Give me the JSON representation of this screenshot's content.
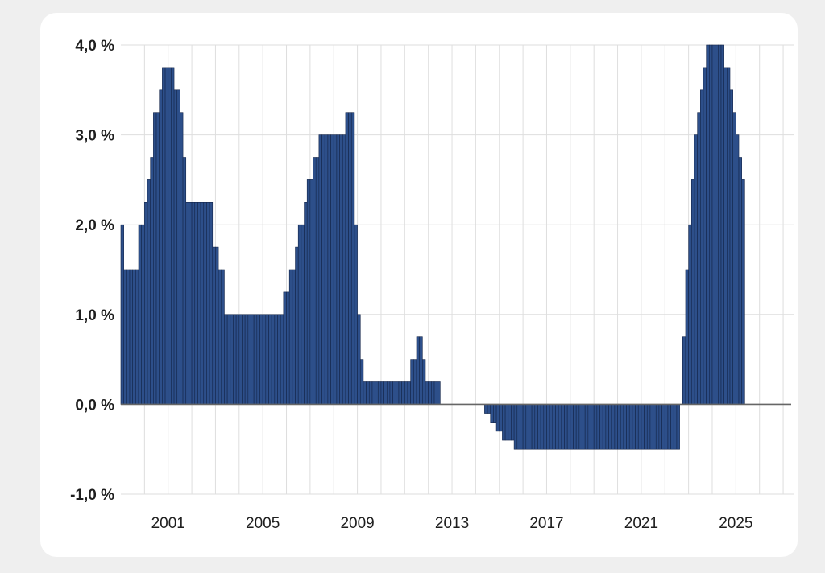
{
  "chart_data": {
    "type": "bar",
    "title": "",
    "xlabel": "",
    "ylabel": "",
    "ylim": [
      -1.0,
      4.0
    ],
    "xlim": [
      1999.0,
      2027.1
    ],
    "grid": true,
    "legend": "none",
    "y_ticks": [
      {
        "value": 4.0,
        "label": "4,0 %"
      },
      {
        "value": 3.0,
        "label": "3,0 %"
      },
      {
        "value": 2.0,
        "label": "2,0 %"
      },
      {
        "value": 1.0,
        "label": "1,0 %"
      },
      {
        "value": 0.0,
        "label": "0,0 %"
      },
      {
        "value": -1.0,
        "label": "-1,0 %"
      }
    ],
    "x_ticks": [
      {
        "value": 2001,
        "label": "2001"
      },
      {
        "value": 2005,
        "label": "2005"
      },
      {
        "value": 2009,
        "label": "2009"
      },
      {
        "value": 2013,
        "label": "2013"
      },
      {
        "value": 2017,
        "label": "2017"
      },
      {
        "value": 2021,
        "label": "2021"
      },
      {
        "value": 2025,
        "label": "2025"
      }
    ],
    "bar_width_years": 0.125,
    "segments": [
      [
        1999.0,
        1999.125,
        2.0
      ],
      [
        1999.125,
        1999.75,
        1.5
      ],
      [
        1999.75,
        2000.0,
        2.0
      ],
      [
        2000.0,
        2000.125,
        2.25
      ],
      [
        2000.125,
        2000.25,
        2.5
      ],
      [
        2000.25,
        2000.375,
        2.75
      ],
      [
        2000.375,
        2000.5,
        3.25
      ],
      [
        2000.5,
        2000.625,
        3.25
      ],
      [
        2000.625,
        2000.75,
        3.5
      ],
      [
        2000.75,
        2001.25,
        3.75
      ],
      [
        2001.25,
        2001.5,
        3.5
      ],
      [
        2001.5,
        2001.625,
        3.25
      ],
      [
        2001.625,
        2001.75,
        2.75
      ],
      [
        2001.75,
        2002.875,
        2.25
      ],
      [
        2002.875,
        2003.125,
        1.75
      ],
      [
        2003.125,
        2003.375,
        1.5
      ],
      [
        2003.375,
        2005.875,
        1.0
      ],
      [
        2005.875,
        2006.125,
        1.25
      ],
      [
        2006.125,
        2006.375,
        1.5
      ],
      [
        2006.375,
        2006.5,
        1.75
      ],
      [
        2006.5,
        2006.75,
        2.0
      ],
      [
        2006.75,
        2006.875,
        2.25
      ],
      [
        2006.875,
        2007.125,
        2.5
      ],
      [
        2007.125,
        2007.375,
        2.75
      ],
      [
        2007.375,
        2008.5,
        3.0
      ],
      [
        2008.5,
        2008.875,
        3.25
      ],
      [
        2008.875,
        2009.0,
        2.0
      ],
      [
        2009.0,
        2009.125,
        1.0
      ],
      [
        2009.125,
        2009.25,
        0.5
      ],
      [
        2009.25,
        2011.25,
        0.25
      ],
      [
        2011.25,
        2011.5,
        0.5
      ],
      [
        2011.5,
        2011.75,
        0.75
      ],
      [
        2011.75,
        2011.875,
        0.5
      ],
      [
        2011.875,
        2012.5,
        0.25
      ],
      [
        2012.5,
        2014.375,
        0.0
      ],
      [
        2014.375,
        2014.625,
        -0.1
      ],
      [
        2014.625,
        2014.875,
        -0.2
      ],
      [
        2014.875,
        2015.125,
        -0.3
      ],
      [
        2015.125,
        2015.625,
        -0.4
      ],
      [
        2015.625,
        2022.625,
        -0.5
      ],
      [
        2022.625,
        2022.75,
        0.0
      ],
      [
        2022.75,
        2022.875,
        0.75
      ],
      [
        2022.875,
        2023.0,
        1.5
      ],
      [
        2023.0,
        2023.125,
        2.0
      ],
      [
        2023.125,
        2023.25,
        2.5
      ],
      [
        2023.25,
        2023.375,
        3.0
      ],
      [
        2023.375,
        2023.5,
        3.25
      ],
      [
        2023.5,
        2023.625,
        3.5
      ],
      [
        2023.625,
        2023.75,
        3.75
      ],
      [
        2023.75,
        2024.5,
        4.0
      ],
      [
        2024.5,
        2024.75,
        3.75
      ],
      [
        2024.75,
        2024.875,
        3.5
      ],
      [
        2024.875,
        2025.0,
        3.25
      ],
      [
        2025.0,
        2025.125,
        3.0
      ],
      [
        2025.125,
        2025.25,
        2.75
      ],
      [
        2025.25,
        2025.375,
        2.5
      ]
    ],
    "colors": {
      "bar_fill": "#2d4f8a",
      "bar_stroke": "#14264a",
      "grid": "#dedede",
      "zero_line": "#666666",
      "text": "#1e1e1e"
    }
  }
}
